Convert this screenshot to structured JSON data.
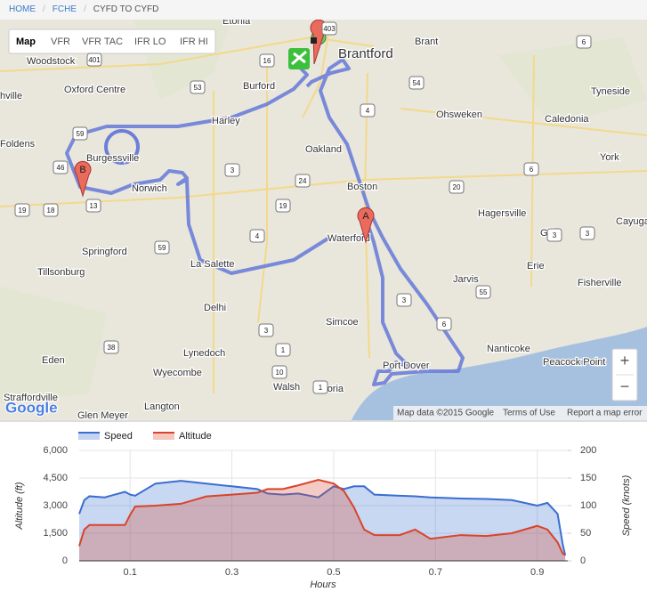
{
  "breadcrumb": {
    "items": [
      "HOME",
      "FCHE",
      "CYFD TO CYFD"
    ],
    "separator": "/"
  },
  "map": {
    "types": [
      "Map",
      "VFR",
      "VFR TAC",
      "IFR LO",
      "IFR HI"
    ],
    "places": [
      "Etonia",
      "Brantford",
      "Brant",
      "Woodstock",
      "Oxford Centre",
      "hville",
      "Burford",
      "Harley",
      "Ohsweken",
      "Caledonia",
      "Tyneside",
      "Foldens",
      "Burgessville",
      "Oakland",
      "York",
      "Norwich",
      "Boston",
      "Hagersville",
      "Cayuga",
      "Waterford",
      "Gill",
      "Springford",
      "La Salette",
      "Erie",
      "Jarvis",
      "Fisherville",
      "Tillsonburg",
      "Delhi",
      "Simcoe",
      "Nanticoke",
      "Lynedoch",
      "Eden",
      "Peacock Point",
      "Port Dover",
      "Wyecombe",
      "Walsh",
      "Vittoria",
      "Straffordville",
      "Langton",
      "Glen Meyer"
    ],
    "roads": [
      "403",
      "401",
      "16",
      "53",
      "4",
      "54",
      "6",
      "6",
      "59",
      "46",
      "3",
      "24",
      "20",
      "19",
      "18",
      "13",
      "19",
      "4",
      "59",
      "3",
      "3",
      "55",
      "3",
      "6",
      "3",
      "1",
      "10",
      "38",
      "1"
    ],
    "markers": [
      "A",
      "B"
    ],
    "zoom": [
      "+",
      "−"
    ],
    "logo": "Google",
    "attribution": [
      "Map data ©2015 Google",
      "Terms of Use",
      "Report a map error"
    ]
  },
  "chart_data": {
    "type": "area",
    "x_label": "Hours",
    "y_label": "Altitude (ft)",
    "y2_label": "Speed (knots)",
    "x": [
      0,
      0.01,
      0.02,
      0.05,
      0.09,
      0.1,
      0.11,
      0.15,
      0.2,
      0.25,
      0.3,
      0.35,
      0.37,
      0.4,
      0.43,
      0.47,
      0.5,
      0.52,
      0.54,
      0.56,
      0.58,
      0.63,
      0.66,
      0.69,
      0.75,
      0.8,
      0.85,
      0.9,
      0.92,
      0.94,
      0.95,
      0.955
    ],
    "series": [
      {
        "name": "Speed",
        "color": "#3a6ed1",
        "axis": "y2",
        "values": [
          85,
          110,
          117,
          115,
          125,
          120,
          118,
          140,
          145,
          140,
          135,
          130,
          122,
          120,
          122,
          115,
          135,
          130,
          135,
          135,
          120,
          118,
          117,
          115,
          113,
          112,
          110,
          100,
          105,
          85,
          30,
          10
        ]
      },
      {
        "name": "Altitude",
        "color": "#d9442b",
        "values": [
          800,
          1700,
          1950,
          1950,
          1950,
          2500,
          2950,
          3000,
          3100,
          3500,
          3600,
          3700,
          3900,
          3900,
          4100,
          4400,
          4200,
          3800,
          2900,
          1700,
          1400,
          1400,
          1700,
          1200,
          1400,
          1350,
          1500,
          1900,
          1700,
          1000,
          400,
          300
        ]
      }
    ],
    "xlim": [
      0,
      0.96
    ],
    "xticks": [
      0.1,
      0.3,
      0.5,
      0.7,
      0.9
    ],
    "ylim": [
      0,
      6000
    ],
    "yticks": [
      0,
      {
        "value": 1500,
        "label": "1,500"
      },
      {
        "value": 3000,
        "label": "3,000"
      },
      {
        "value": 4500,
        "label": "4,500"
      },
      {
        "value": 6000,
        "label": "6,000"
      }
    ],
    "y2lim": [
      0,
      200
    ],
    "y2ticks": [
      0,
      50,
      100,
      150,
      200
    ],
    "grid": true,
    "legend": "top"
  }
}
